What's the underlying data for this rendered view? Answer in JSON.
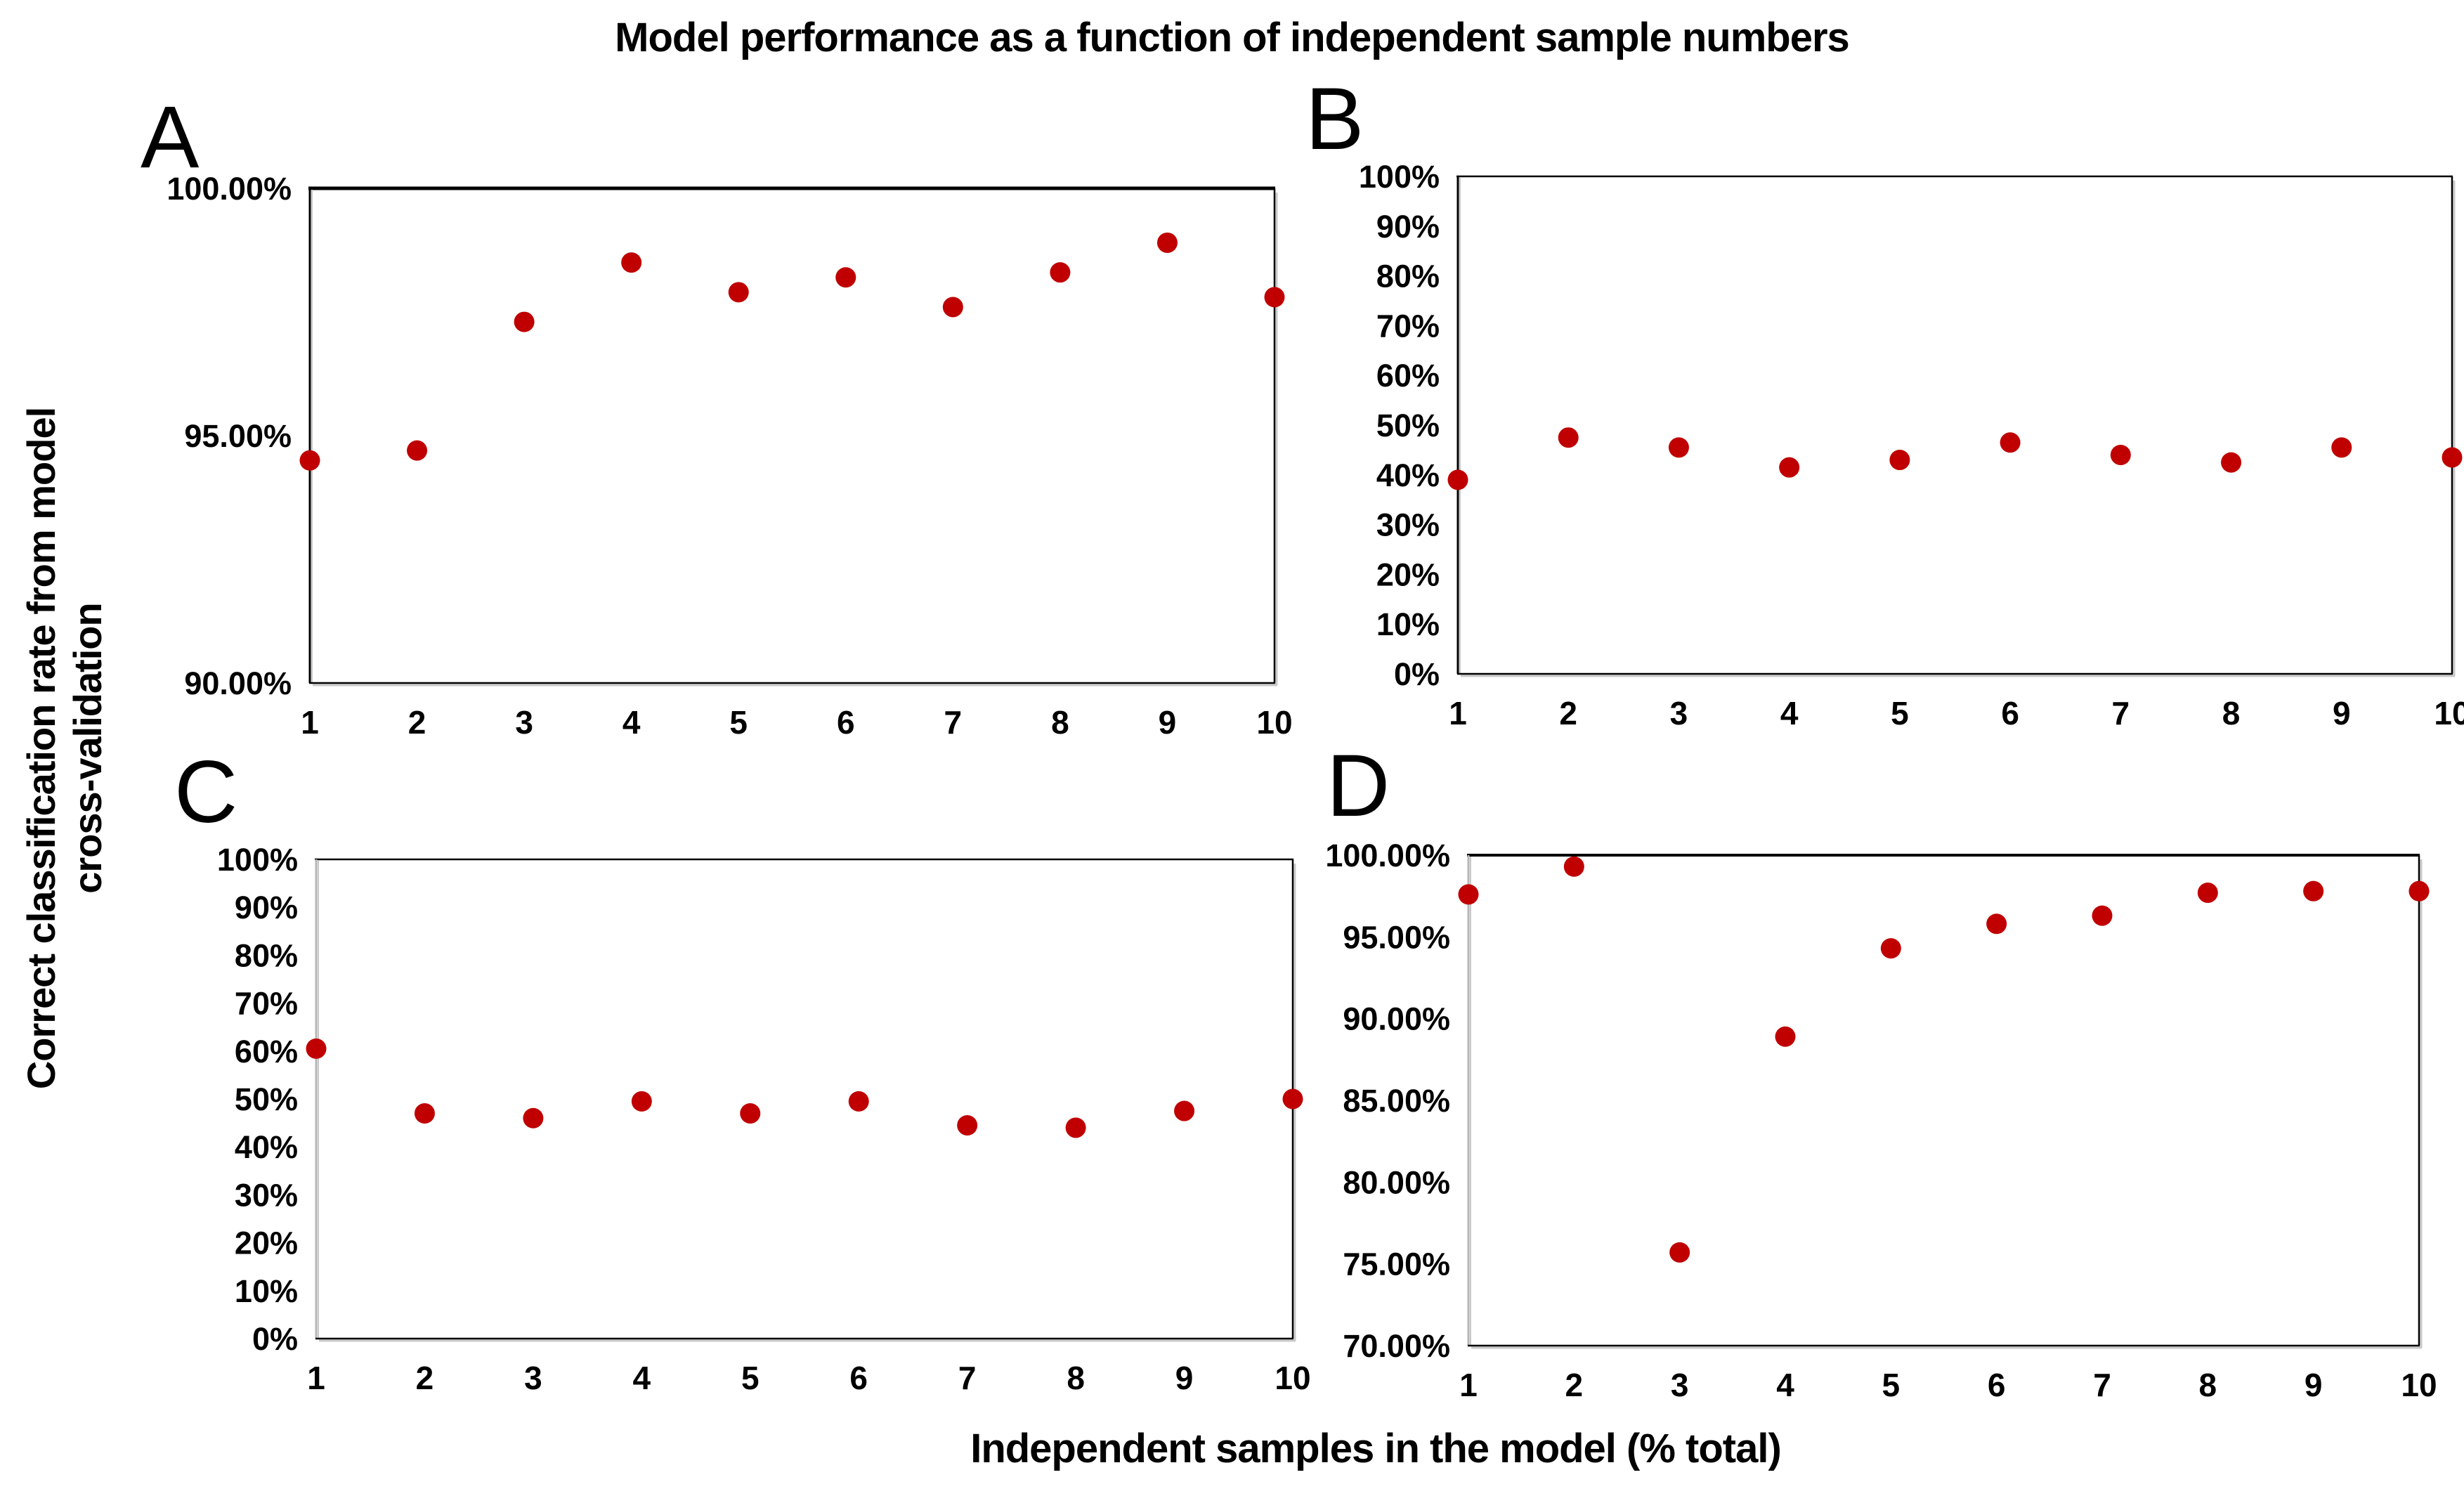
{
  "title": "Model performance as a function of independent sample numbers",
  "y_axis_title": "Correct classification rate from model\ncross-validation",
  "x_axis_title": "Independent samples in the model (% total)",
  "chart_data": {
    "type": "scatter",
    "point_color": "#c00000",
    "x_categories": [
      "1",
      "2",
      "3",
      "4",
      "5",
      "6",
      "7",
      "8",
      "9",
      "10"
    ],
    "grid": false,
    "legend": "none",
    "panels": [
      {
        "label": "A",
        "ylim": [
          90,
          100
        ],
        "ytick_step": 5,
        "ytick_decimals": 2,
        "ytick_labels": [
          "100.00%",
          "95.00%",
          "90.00%"
        ],
        "values": [
          94.5,
          94.7,
          97.3,
          98.5,
          97.9,
          98.2,
          97.6,
          98.3,
          98.9,
          97.8
        ]
      },
      {
        "label": "B",
        "ylim": [
          0,
          100
        ],
        "ytick_step": 10,
        "ytick_decimals": 0,
        "ytick_labels": [
          "100%",
          "90%",
          "80%",
          "70%",
          "60%",
          "50%",
          "40%",
          "30%",
          "20%",
          "10%",
          "0%"
        ],
        "values": [
          39,
          47.5,
          45.5,
          41.5,
          43,
          46.5,
          44,
          42.5,
          45.5,
          43.5
        ]
      },
      {
        "label": "C",
        "ylim": [
          0,
          100
        ],
        "ytick_step": 10,
        "ytick_decimals": 0,
        "ytick_labels": [
          "100%",
          "90%",
          "80%",
          "70%",
          "60%",
          "50%",
          "40%",
          "30%",
          "20%",
          "10%",
          "0%"
        ],
        "values": [
          60.5,
          47,
          46,
          49.5,
          47,
          49.5,
          44.5,
          44,
          47.5,
          50
        ]
      },
      {
        "label": "D",
        "ylim": [
          70,
          100
        ],
        "ytick_step": 5,
        "ytick_decimals": 2,
        "ytick_labels": [
          "100.00%",
          "95.00%",
          "90.00%",
          "85.00%",
          "80.00%",
          "75.00%",
          "70.00%"
        ],
        "values": [
          97.6,
          99.3,
          75.7,
          88.9,
          94.3,
          95.8,
          96.3,
          97.7,
          97.8,
          97.8
        ]
      }
    ]
  }
}
